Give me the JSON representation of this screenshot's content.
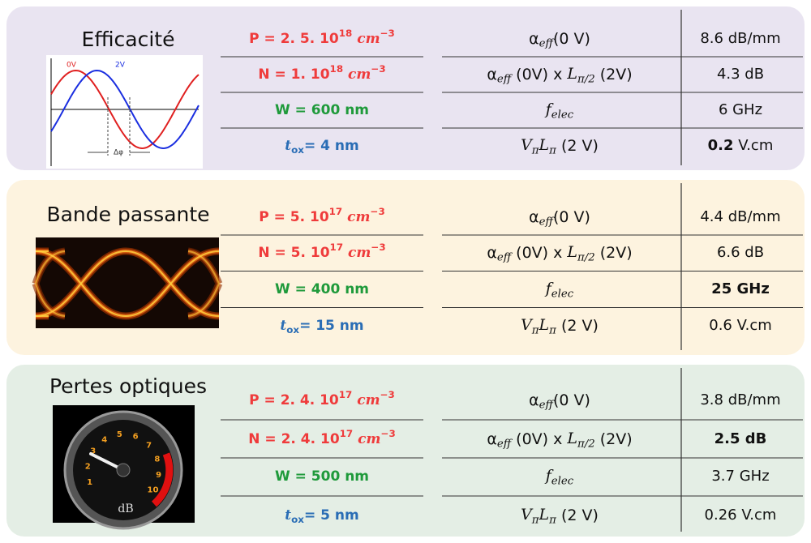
{
  "panels": [
    {
      "title": "Efficacité",
      "image_labels": [
        "0V",
        "2V",
        "Δφ"
      ],
      "params": [
        [
          {
            "t": "P = 2. 5. 10"
          },
          {
            "t": "18",
            "s": "sup"
          },
          {
            "t": " cm",
            "s": "i"
          },
          {
            "t": "−3",
            "s": "sup"
          }
        ],
        [
          {
            "t": "N = 1. 10"
          },
          {
            "t": "18",
            "s": "sup"
          },
          {
            "t": " cm",
            "s": "i"
          },
          {
            "t": "−3",
            "s": "sup"
          }
        ],
        [
          {
            "t": "W = 600 nm"
          }
        ],
        [
          {
            "t": "t",
            "s": "i"
          },
          {
            "t": "ox",
            "s": "sub"
          },
          {
            "t": "= 4 nm"
          }
        ]
      ],
      "metrics": [
        {
          "label": [
            {
              "t": "α"
            },
            {
              "t": "eff",
              "s": "sub"
            },
            {
              "t": "(0 V)"
            }
          ],
          "value": [
            {
              "t": "8.6 dB/mm"
            }
          ]
        },
        {
          "label": [
            {
              "t": "α"
            },
            {
              "t": "eff",
              "s": "sub"
            },
            {
              "t": " (0V) x "
            },
            {
              "t": "L",
              "s": "i"
            },
            {
              "t": "π/2",
              "s": "sub"
            },
            {
              "t": " (2V)"
            }
          ],
          "value": [
            {
              "t": "4.3 dB"
            }
          ]
        },
        {
          "label": [
            {
              "t": "f",
              "s": "i"
            },
            {
              "t": "elec",
              "s": "sub"
            }
          ],
          "value": [
            {
              "t": "6 GHz"
            }
          ]
        },
        {
          "label": [
            {
              "t": "V",
              "s": "i"
            },
            {
              "t": "π",
              "s": "sub"
            },
            {
              "t": "L",
              "s": "i"
            },
            {
              "t": "π",
              "s": "sub"
            },
            {
              "t": " (2 V)"
            }
          ],
          "value": [
            {
              "t": "0.2",
              "s": "b"
            },
            {
              "t": " V.cm"
            }
          ]
        }
      ]
    },
    {
      "title": "Bande passante",
      "params": [
        [
          {
            "t": "P = 5. 10"
          },
          {
            "t": "17",
            "s": "sup"
          },
          {
            "t": " cm",
            "s": "i"
          },
          {
            "t": "−3",
            "s": "sup"
          }
        ],
        [
          {
            "t": "N = 5. 10"
          },
          {
            "t": "17",
            "s": "sup"
          },
          {
            "t": " cm",
            "s": "i"
          },
          {
            "t": "−3",
            "s": "sup"
          }
        ],
        [
          {
            "t": "W = 400 nm"
          }
        ],
        [
          {
            "t": "t",
            "s": "i"
          },
          {
            "t": "ox",
            "s": "sub"
          },
          {
            "t": "= 15 nm"
          }
        ]
      ],
      "metrics": [
        {
          "label": [
            {
              "t": "α"
            },
            {
              "t": "eff",
              "s": "sub"
            },
            {
              "t": "(0 V)"
            }
          ],
          "value": [
            {
              "t": "4.4 dB/mm"
            }
          ]
        },
        {
          "label": [
            {
              "t": "α"
            },
            {
              "t": "eff",
              "s": "sub"
            },
            {
              "t": " (0V) x "
            },
            {
              "t": "L",
              "s": "i"
            },
            {
              "t": "π/2",
              "s": "sub"
            },
            {
              "t": " (2V)"
            }
          ],
          "value": [
            {
              "t": "6.6 dB"
            }
          ]
        },
        {
          "label": [
            {
              "t": "f",
              "s": "i"
            },
            {
              "t": "elec",
              "s": "sub"
            }
          ],
          "value": [
            {
              "t": "25 GHz",
              "s": "b"
            }
          ]
        },
        {
          "label": [
            {
              "t": "V",
              "s": "i"
            },
            {
              "t": "π",
              "s": "sub"
            },
            {
              "t": "L",
              "s": "i"
            },
            {
              "t": "π",
              "s": "sub"
            },
            {
              "t": " (2 V)"
            }
          ],
          "value": [
            {
              "t": "0.6 V.cm"
            }
          ]
        }
      ]
    },
    {
      "title": "Pertes optiques",
      "image_labels": [
        "1",
        "2",
        "3",
        "4",
        "5",
        "6",
        "7",
        "8",
        "9",
        "10",
        "dB"
      ],
      "params": [
        [
          {
            "t": "P = 2. 4. 10"
          },
          {
            "t": "17",
            "s": "sup"
          },
          {
            "t": " cm",
            "s": "i"
          },
          {
            "t": "−3",
            "s": "sup"
          }
        ],
        [
          {
            "t": "N = 2. 4. 10"
          },
          {
            "t": "17",
            "s": "sup"
          },
          {
            "t": " cm",
            "s": "i"
          },
          {
            "t": "−3",
            "s": "sup"
          }
        ],
        [
          {
            "t": "W = 500 nm"
          }
        ],
        [
          {
            "t": "t",
            "s": "i"
          },
          {
            "t": "ox",
            "s": "sub"
          },
          {
            "t": "= 5 nm"
          }
        ]
      ],
      "metrics": [
        {
          "label": [
            {
              "t": "α"
            },
            {
              "t": "eff",
              "s": "sub"
            },
            {
              "t": "(0 V)"
            }
          ],
          "value": [
            {
              "t": "3.8 dB/mm"
            }
          ]
        },
        {
          "label": [
            {
              "t": "α"
            },
            {
              "t": "eff",
              "s": "sub"
            },
            {
              "t": " (0V) x "
            },
            {
              "t": "L",
              "s": "i"
            },
            {
              "t": "π/2",
              "s": "sub"
            },
            {
              "t": " (2V)"
            }
          ],
          "value": [
            {
              "t": "2.5 dB",
              "s": "b"
            }
          ]
        },
        {
          "label": [
            {
              "t": "f",
              "s": "i"
            },
            {
              "t": "elec",
              "s": "sub"
            }
          ],
          "value": [
            {
              "t": "3.7 GHz"
            }
          ]
        },
        {
          "label": [
            {
              "t": "V",
              "s": "i"
            },
            {
              "t": "π",
              "s": "sub"
            },
            {
              "t": "L",
              "s": "i"
            },
            {
              "t": "π",
              "s": "sub"
            },
            {
              "t": " (2 V)"
            }
          ],
          "value": [
            {
              "t": "0.26 V.cm"
            }
          ]
        }
      ]
    }
  ]
}
